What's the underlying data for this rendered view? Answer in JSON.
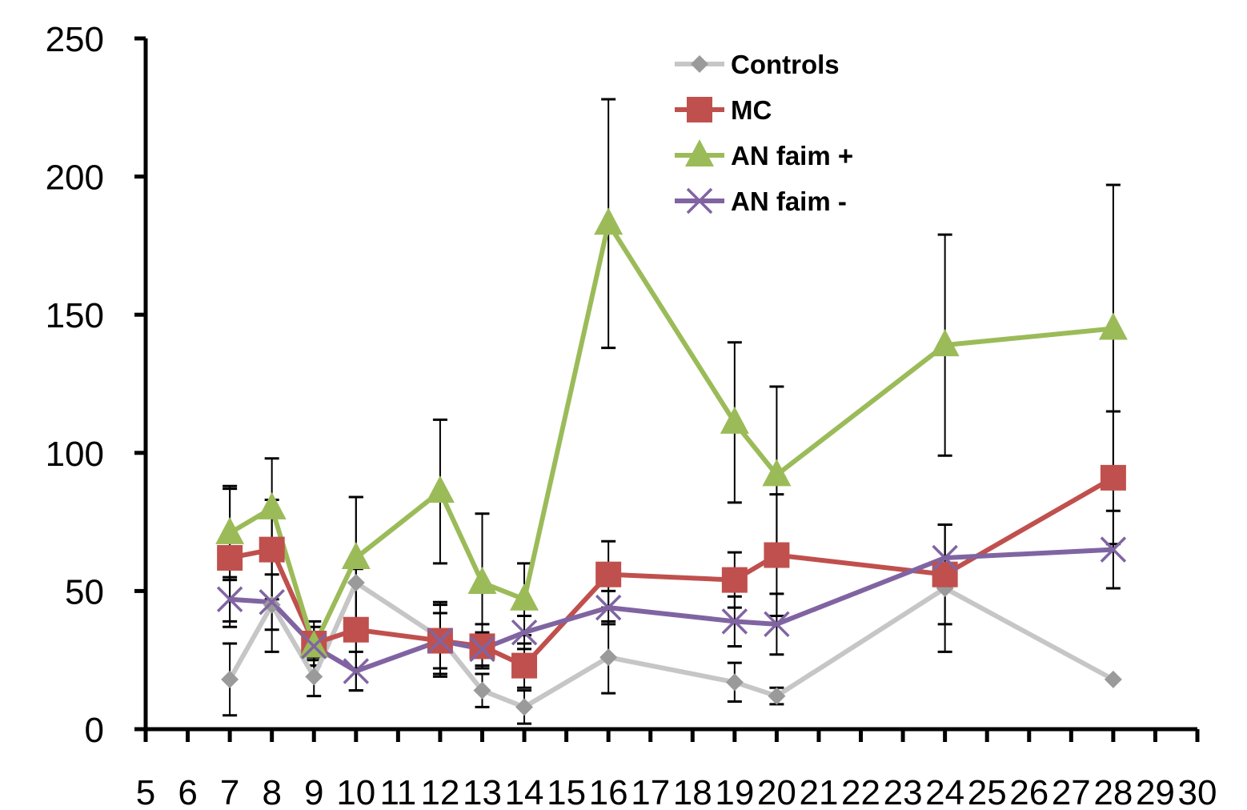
{
  "chart_data": {
    "type": "line",
    "title": "",
    "xlabel": "",
    "ylabel": "",
    "xlim": [
      5,
      30
    ],
    "ylim": [
      0,
      250
    ],
    "y_ticks": [
      0,
      50,
      100,
      150,
      200,
      250
    ],
    "x_ticks": [
      5,
      6,
      7,
      8,
      9,
      10,
      11,
      12,
      13,
      14,
      15,
      16,
      17,
      18,
      19,
      20,
      21,
      22,
      23,
      24,
      25,
      26,
      27,
      28,
      29,
      30
    ],
    "grid": false,
    "legend_position": "top-center",
    "series": [
      {
        "name": "Controls",
        "color": "#c6c6c6",
        "marker": "diamond",
        "x": [
          7,
          8,
          9,
          10,
          12,
          13,
          14,
          16,
          19,
          20,
          24,
          28
        ],
        "y": [
          18,
          45,
          19,
          53,
          33,
          14,
          8,
          26,
          17,
          12,
          51,
          18
        ],
        "err": [
          13,
          17,
          7,
          31,
          13,
          6,
          6,
          13,
          7,
          3,
          23,
          0
        ]
      },
      {
        "name": "MC",
        "color": "#c0504d",
        "marker": "square",
        "x": [
          7,
          8,
          9,
          10,
          12,
          13,
          14,
          16,
          19,
          20,
          24,
          28
        ],
        "y": [
          62,
          65,
          31,
          36,
          32,
          30,
          23,
          56,
          54,
          63,
          56,
          91
        ],
        "err": [
          25,
          18,
          8,
          22,
          13,
          8,
          8,
          12,
          10,
          22,
          18,
          24
        ]
      },
      {
        "name": "AN faim +",
        "color": "#9bbb59",
        "marker": "triangle",
        "x": [
          7,
          8,
          9,
          10,
          12,
          13,
          14,
          16,
          19,
          20,
          24,
          28
        ],
        "y": [
          71,
          80,
          30,
          62,
          86,
          53,
          47,
          183,
          111,
          92,
          139,
          145
        ],
        "err": [
          17,
          18,
          5,
          22,
          26,
          25,
          13,
          45,
          29,
          32,
          40,
          52
        ]
      },
      {
        "name": "AN faim -",
        "color": "#8064a2",
        "marker": "x",
        "x": [
          7,
          8,
          9,
          10,
          12,
          13,
          14,
          16,
          19,
          20,
          24,
          28
        ],
        "y": [
          47,
          46,
          30,
          21,
          32,
          29,
          35,
          44,
          39,
          38,
          62,
          65
        ],
        "err": [
          8,
          10,
          7,
          7,
          10,
          6,
          6,
          6,
          9,
          11,
          12,
          14
        ]
      }
    ]
  }
}
